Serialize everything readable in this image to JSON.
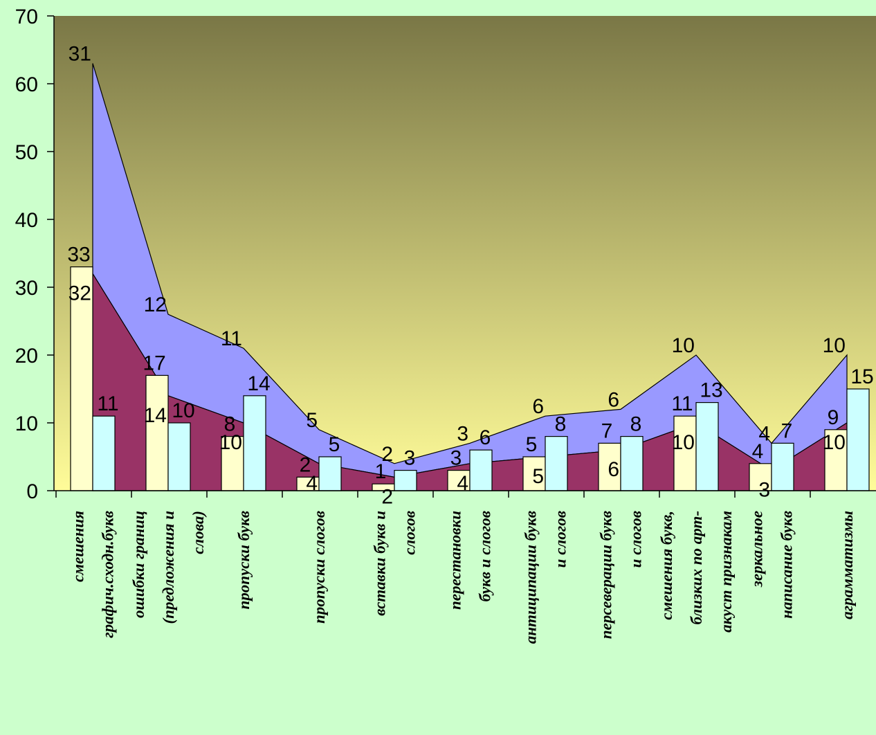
{
  "chart_data": {
    "type": "bar",
    "title": "",
    "xlabel": "",
    "ylabel": "",
    "ylim": [
      0,
      70
    ],
    "yticks": [
      0,
      10,
      20,
      30,
      40,
      50,
      60,
      70
    ],
    "grid": false,
    "legend": "none",
    "categories": [
      [
        "смешения",
        "графич.сходн.букв"
      ],
      [
        "ошибки  границ",
        "(предложения и",
        "слова)"
      ],
      [
        "пропуски букв"
      ],
      [
        "пропуски слогов"
      ],
      [
        "вставки букв и",
        "слогов"
      ],
      [
        "перестановки",
        "букв и слогов"
      ],
      [
        "антиципации букв",
        "и слогов"
      ],
      [
        "персеверации букв",
        "и слогов"
      ],
      [
        "смешения букв,",
        "близких по арт-",
        "акуст признакам"
      ],
      [
        "зеркальное",
        "написание букв"
      ],
      [
        "аграмматизмы"
      ]
    ],
    "series": [
      {
        "type": "area",
        "values": [
          32,
          14,
          10,
          4,
          2,
          4,
          5,
          6,
          10,
          3,
          10
        ],
        "color": "#993366"
      },
      {
        "type": "area",
        "values": [
          31,
          12,
          11,
          5,
          2,
          3,
          6,
          6,
          10,
          4,
          10
        ],
        "color": "#9999ff"
      },
      {
        "type": "bar",
        "values": [
          33,
          17,
          8,
          2,
          1,
          3,
          5,
          7,
          11,
          4,
          9
        ],
        "color": "#ffffcc"
      },
      {
        "type": "bar",
        "values": [
          11,
          10,
          14,
          5,
          3,
          6,
          8,
          8,
          13,
          7,
          15
        ],
        "color": "#ccffff"
      }
    ],
    "colors": {
      "plot_top": "#7a7746",
      "plot_bottom": "#fffc99",
      "page_background": "#ccffcc"
    }
  }
}
